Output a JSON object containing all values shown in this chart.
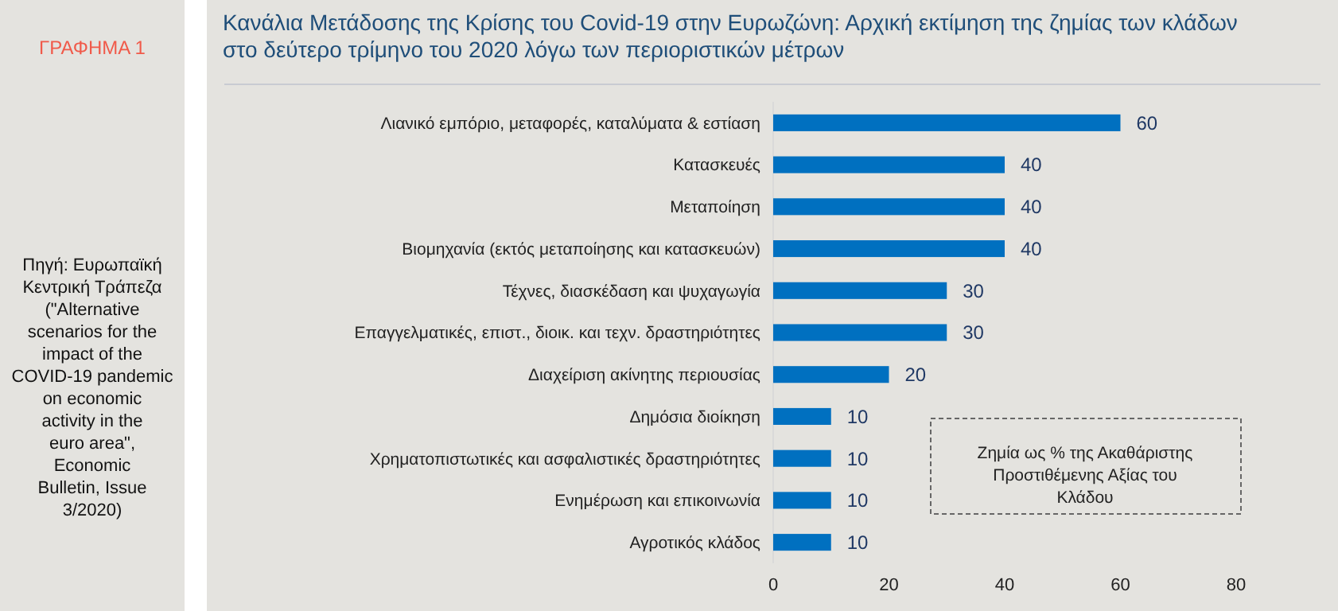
{
  "chart_data": {
    "type": "bar",
    "orientation": "horizontal",
    "title": "Κανάλια Μετάδοσης της Κρίσης του Covid-19 στην Ευρωζώνη: Αρχική εκτίμηση της ζημίας των κλάδων στο δεύτερο τρίμηνο του 2020 λόγω των περιοριστικών μέτρων",
    "categories": [
      "Λιανικό εμπόριο, μεταφορές, καταλύματα & εστίαση",
      "Κατασκευές",
      "Μεταποίηση",
      "Βιομηχανία (εκτός μεταποίησης και κατασκευών)",
      "Τέχνες, διασκέδαση και ψυχαγωγία",
      "Επαγγελματικές, επιστ., διοικ. και τεχν. δραστηριότητες",
      "Διαχείριση ακίνητης περιουσίας",
      "Δημόσια διοίκηση",
      "Χρηματοπιστωτικές και ασφαλιστικές δραστηριότητες",
      "Ενημέρωση και επικοινωνία",
      "Αγροτικός κλάδος"
    ],
    "values": [
      60,
      40,
      40,
      40,
      30,
      30,
      20,
      10,
      10,
      10,
      10
    ],
    "color": "#0070c0",
    "data_labels": true,
    "xlim": [
      0,
      80
    ],
    "xticks": [
      0,
      20,
      40,
      60,
      80
    ],
    "annotations": [
      "ΓΡΑΦΗΜΑ 1",
      "Πηγή: Ευρωπαϊκή Κεντρική Τράπεζα (\"Alternative scenarios for the impact of the COVID-19 pandemic on economic activity in the euro area\", Economic Bulletin, Issue 3/2020)",
      "Ζημία ως % της Ακαθάριστης Προστιθέμενης Αξίας του Κλάδου"
    ]
  }
}
